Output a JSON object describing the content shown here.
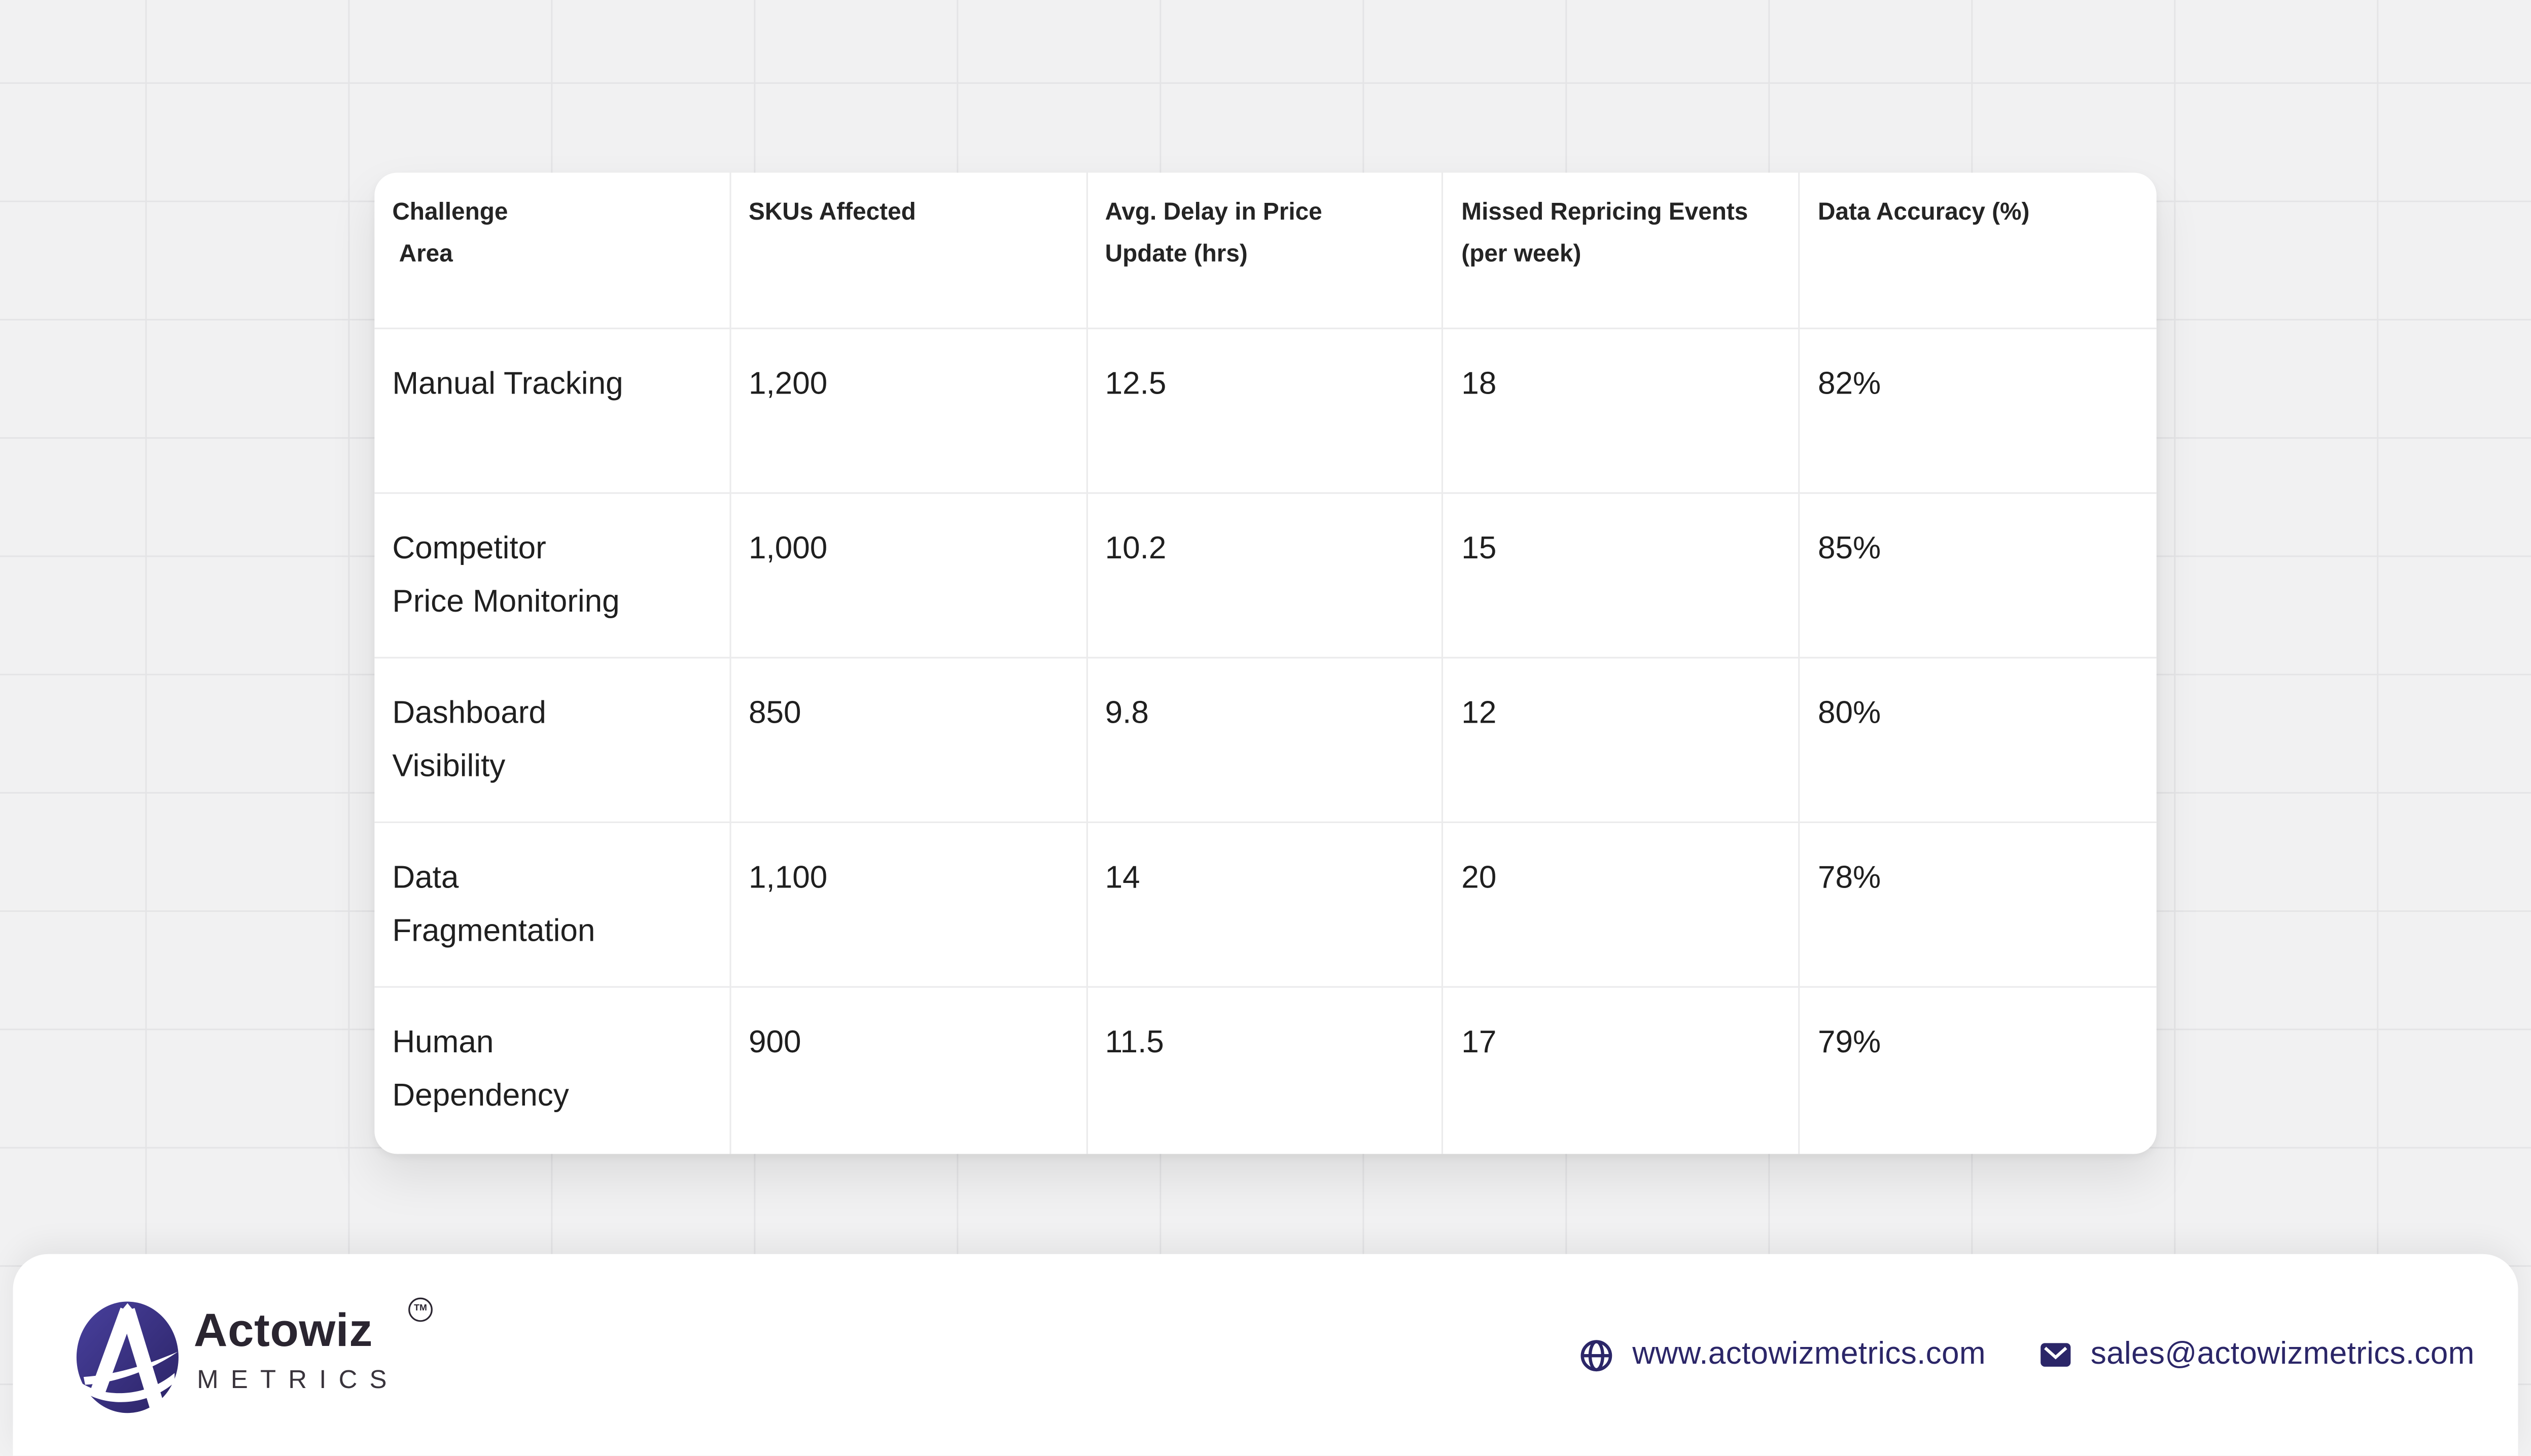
{
  "page": {
    "background_color": "#f1f1f2",
    "grid_line_color": "#e4e4e6",
    "card_color": "#ffffff"
  },
  "chart_data": {
    "type": "table",
    "columns": [
      "Challenge\n Area",
      "SKUs Affected",
      "Avg. Delay in Price\nUpdate (hrs)",
      "Missed Repricing Events\n(per week)",
      "Data Accuracy (%)"
    ],
    "rows": [
      [
        "Manual Tracking",
        "1,200",
        "12.5",
        "18",
        "82%"
      ],
      [
        "Competitor\nPrice Monitoring",
        "1,000",
        "10.2",
        "15",
        "85%"
      ],
      [
        "Dashboard\nVisibility",
        "850",
        "9.8",
        "12",
        "80%"
      ],
      [
        "Data\nFragmentation",
        "1,100",
        "14",
        "20",
        "78%"
      ],
      [
        "Human\nDependency",
        "900",
        "11.5",
        "17",
        "79%"
      ]
    ]
  },
  "footer": {
    "brand": {
      "name": "Actowiz",
      "subtitle": "M E T R I C S_rendered_via_css",
      "subtitle_text": "METRICS",
      "trademark": "TM"
    },
    "contacts": {
      "website": {
        "label": "www.actowizmetrics.com",
        "icon": "globe-icon"
      },
      "email": {
        "label": "sales@actowizmetrics.com",
        "icon": "mail-icon"
      }
    },
    "accent_color": "#2b2668",
    "logo_gradient": {
      "from": "#48409d",
      "to": "#2b2365"
    }
  }
}
